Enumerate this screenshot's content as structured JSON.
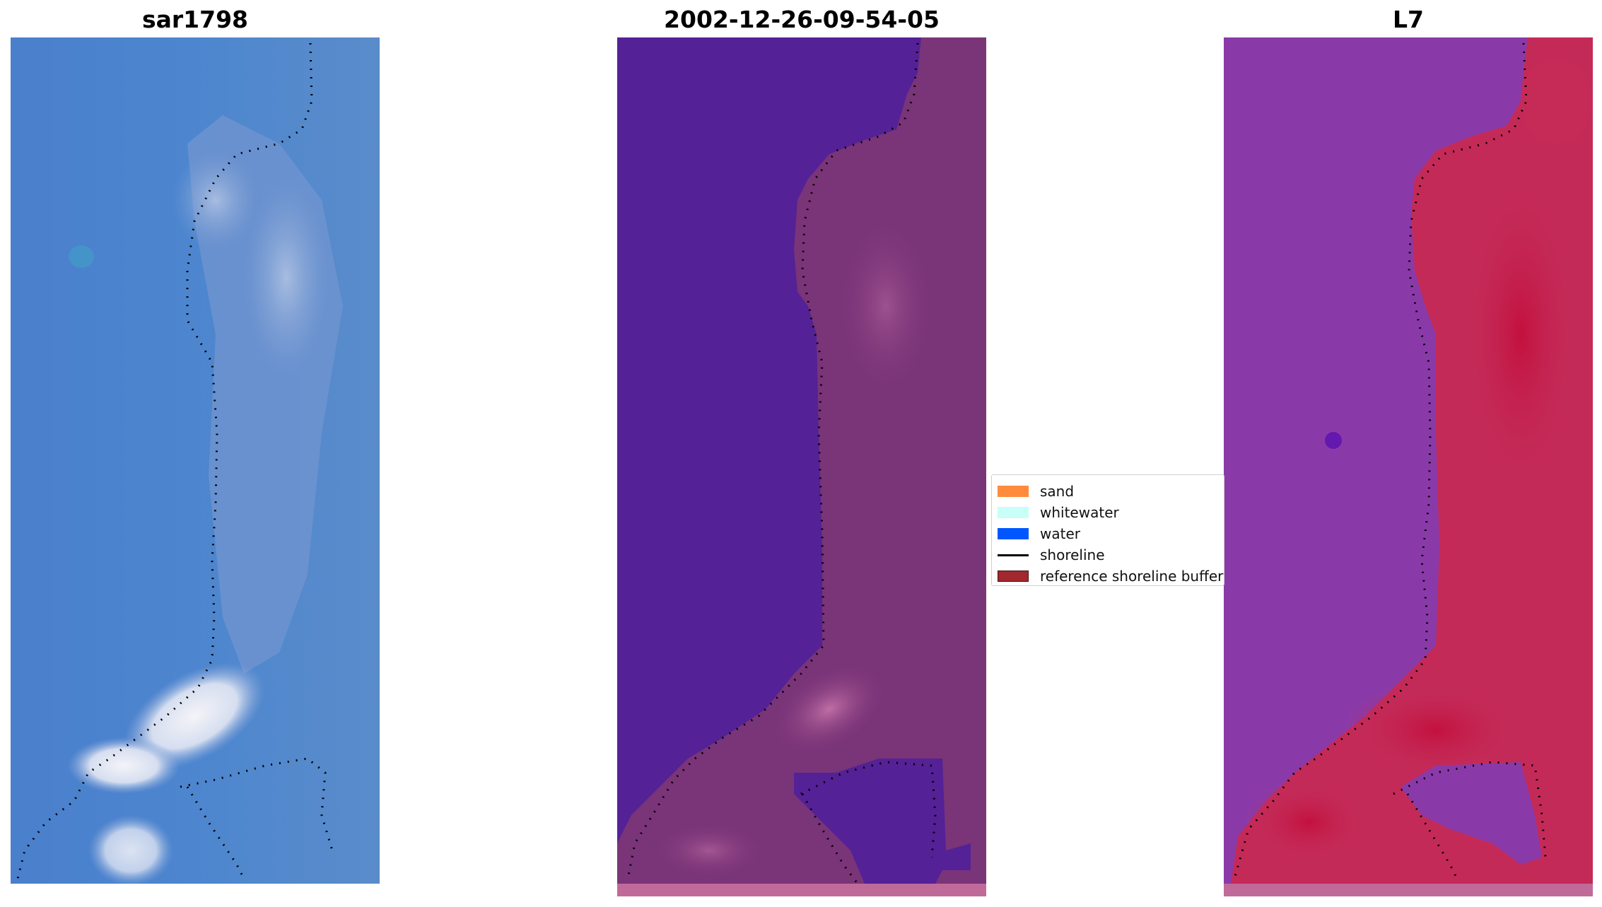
{
  "panels": [
    {
      "title": "sar1798"
    },
    {
      "title": "2002-12-26-09-54-05"
    },
    {
      "title": "L7"
    }
  ],
  "legend": {
    "items": [
      {
        "label": "sand",
        "color": "#ff8c3c",
        "kind": "patch"
      },
      {
        "label": "whitewater",
        "color": "#c8fff8",
        "kind": "patch"
      },
      {
        "label": "water",
        "color": "#0057ff",
        "kind": "patch"
      },
      {
        "label": "shoreline",
        "color": "#000000",
        "kind": "line"
      },
      {
        "label": "reference shoreline buffer",
        "color": "#a0282e",
        "kind": "patch"
      }
    ]
  },
  "colors": {
    "rgb_water": "#4a80cc",
    "rgb_whitewater": "#e8ecf4",
    "classified_water": "#542196",
    "classified_land": "#7a3478",
    "classified_strip": "#c06a9a",
    "l7_water": "#8a3aa8",
    "l7_land": "#c2174a"
  }
}
